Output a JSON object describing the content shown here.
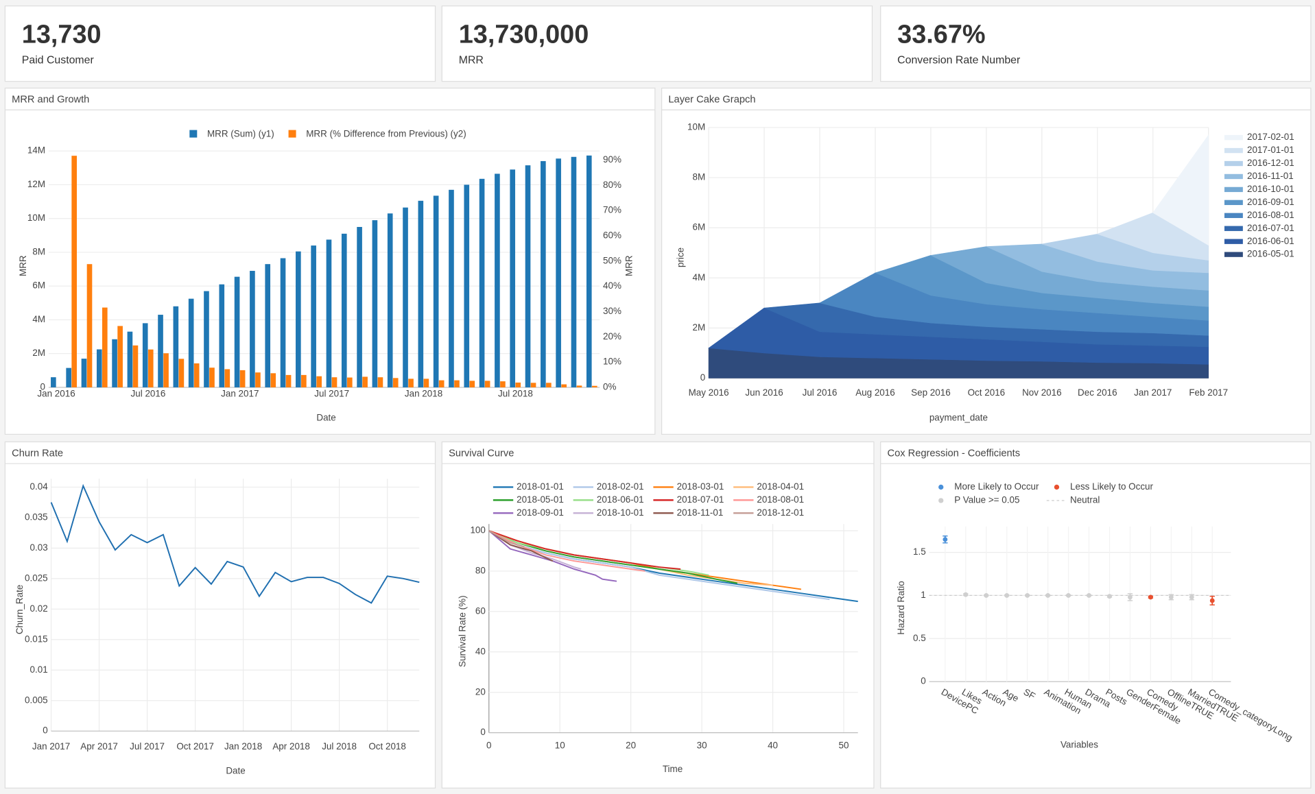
{
  "kpis": [
    {
      "value": "13,730",
      "label": "Paid Customer"
    },
    {
      "value": "13,730,000",
      "label": "MRR"
    },
    {
      "value": "33.67%",
      "label": "Conversion Rate Number"
    }
  ],
  "chart_data": [
    {
      "type": "bar",
      "title": "MRR and Growth",
      "xlabel": "Date",
      "ylabel": "MRR",
      "y2label": "MRR",
      "x": [
        "2016-01",
        "2016-02",
        "2016-03",
        "2016-04",
        "2016-05",
        "2016-06",
        "2016-07",
        "2016-08",
        "2016-09",
        "2016-10",
        "2016-11",
        "2016-12",
        "2017-01",
        "2017-02",
        "2017-03",
        "2017-04",
        "2017-05",
        "2017-06",
        "2017-07",
        "2017-08",
        "2017-09",
        "2017-10",
        "2017-11",
        "2017-12",
        "2018-01",
        "2018-02",
        "2018-03",
        "2018-04",
        "2018-05",
        "2018-06",
        "2018-07",
        "2018-08",
        "2018-09",
        "2018-10",
        "2018-11",
        "2018-12"
      ],
      "xticks": [
        {
          "value": "2016-01",
          "label": "Jan 2016"
        },
        {
          "value": "2016-07",
          "label": "Jul 2016"
        },
        {
          "value": "2017-01",
          "label": "Jan 2017"
        },
        {
          "value": "2017-07",
          "label": "Jul 2017"
        },
        {
          "value": "2018-01",
          "label": "Jan 2018"
        },
        {
          "value": "2018-07",
          "label": "Jul 2018"
        }
      ],
      "ylim": [
        0,
        14000000
      ],
      "yticks": [
        0,
        {
          "value": 2000000,
          "label": "2M"
        },
        {
          "value": 4000000,
          "label": "4M"
        },
        {
          "value": 6000000,
          "label": "6M"
        },
        {
          "value": 8000000,
          "label": "8M"
        },
        {
          "value": 10000000,
          "label": "10M"
        },
        {
          "value": 12000000,
          "label": "12M"
        },
        {
          "value": 14000000,
          "label": "14M"
        }
      ],
      "y2lim": [
        0,
        93.6
      ],
      "y2ticks": [
        {
          "value": 0,
          "label": "0%"
        },
        {
          "value": 10,
          "label": "10%"
        },
        {
          "value": 20,
          "label": "20%"
        },
        {
          "value": 30,
          "label": "30%"
        },
        {
          "value": 40,
          "label": "40%"
        },
        {
          "value": 50,
          "label": "50%"
        },
        {
          "value": 60,
          "label": "60%"
        },
        {
          "value": 70,
          "label": "70%"
        },
        {
          "value": 80,
          "label": "80%"
        },
        {
          "value": 90,
          "label": "90%"
        }
      ],
      "grid": true,
      "series": [
        {
          "name": "MRR (Sum) (y1)",
          "color": "#1f77b4",
          "axis": "y",
          "values": [
            600000,
            1150000,
            1700000,
            2250000,
            2850000,
            3300000,
            3800000,
            4300000,
            4800000,
            5250000,
            5700000,
            6100000,
            6550000,
            6900000,
            7300000,
            7650000,
            8050000,
            8400000,
            8750000,
            9100000,
            9500000,
            9900000,
            10300000,
            10650000,
            11050000,
            11350000,
            11700000,
            12000000,
            12350000,
            12650000,
            12900000,
            13150000,
            13400000,
            13550000,
            13650000,
            13730000
          ]
        },
        {
          "name": "MRR (% Difference from Previous) (y2)",
          "color": "#ff7f0e",
          "axis": "y2",
          "values": [
            null,
            91.7,
            48.8,
            31.6,
            24.3,
            16.6,
            15,
            13.5,
            11.3,
            9.5,
            7.8,
            7.2,
            6.8,
            5.9,
            5.6,
            4.9,
            4.9,
            4.4,
            4.0,
            3.9,
            4.2,
            4.0,
            3.7,
            3.4,
            3.4,
            2.8,
            2.8,
            2.6,
            2.6,
            2.4,
            1.9,
            1.8,
            1.8,
            1.2,
            0.7,
            0.6
          ]
        }
      ]
    },
    {
      "type": "area",
      "title": "Layer Cake Grapch",
      "xlabel": "payment_date",
      "ylabel": "price",
      "categories": [
        "May 2016",
        "Jun 2016",
        "Jul 2016",
        "Aug 2016",
        "Sep 2016",
        "Oct 2016",
        "Nov 2016",
        "Dec 2016",
        "Jan 2017",
        "Feb 2017"
      ],
      "ylim": [
        0,
        10000000
      ],
      "yticks": [
        0,
        {
          "value": 2000000,
          "label": "2M"
        },
        {
          "value": 4000000,
          "label": "4M"
        },
        {
          "value": 6000000,
          "label": "6M"
        },
        {
          "value": 8000000,
          "label": "8M"
        },
        {
          "value": 10000000,
          "label": "10M"
        }
      ],
      "grid": true,
      "legend": "right",
      "series": [
        {
          "name": "2016-05-01",
          "color": "#2f4b7c",
          "values": [
            1200000,
            1000000,
            850000,
            800000,
            750000,
            700000,
            670000,
            620000,
            600000,
            550000
          ]
        },
        {
          "name": "2016-06-01",
          "color": "#2e5ca6",
          "values": [
            null,
            1800000,
            1000000,
            950000,
            900000,
            850000,
            780000,
            730000,
            700000,
            700000
          ]
        },
        {
          "name": "2016-07-01",
          "color": "#3569ad",
          "values": [
            null,
            null,
            1150000,
            700000,
            550000,
            500000,
            500000,
            500000,
            500000,
            450000
          ]
        },
        {
          "name": "2016-08-01",
          "color": "#4a86c1",
          "values": [
            null,
            null,
            null,
            1750000,
            1100000,
            900000,
            800000,
            750000,
            650000,
            600000
          ]
        },
        {
          "name": "2016-09-01",
          "color": "#5b97c9",
          "values": [
            null,
            null,
            null,
            null,
            1600000,
            850000,
            650000,
            600000,
            550000,
            550000
          ]
        },
        {
          "name": "2016-10-01",
          "color": "#76aad4",
          "values": [
            null,
            null,
            null,
            null,
            null,
            1450000,
            850000,
            650000,
            650000,
            650000
          ]
        },
        {
          "name": "2016-11-01",
          "color": "#93bde0",
          "values": [
            null,
            null,
            null,
            null,
            null,
            null,
            1100000,
            800000,
            650000,
            700000
          ]
        },
        {
          "name": "2016-12-01",
          "color": "#b4d0ea",
          "values": [
            null,
            null,
            null,
            null,
            null,
            null,
            null,
            1100000,
            700000,
            500000
          ]
        },
        {
          "name": "2017-01-01",
          "color": "#d2e2f2",
          "values": [
            null,
            null,
            null,
            null,
            null,
            null,
            null,
            null,
            1600000,
            600000
          ]
        },
        {
          "name": "2017-02-01",
          "color": "#eef4fa",
          "values": [
            null,
            null,
            null,
            null,
            null,
            null,
            null,
            null,
            null,
            4400000
          ]
        }
      ]
    },
    {
      "type": "line",
      "title": "Churn Rate",
      "xlabel": "Date",
      "ylabel": "Churn_Rate",
      "x": [
        "2017-01",
        "2017-02",
        "2017-03",
        "2017-04",
        "2017-05",
        "2017-06",
        "2017-07",
        "2017-08",
        "2017-09",
        "2017-10",
        "2017-11",
        "2017-12",
        "2018-01",
        "2018-02",
        "2018-03",
        "2018-04",
        "2018-05",
        "2018-06",
        "2018-07",
        "2018-08",
        "2018-09",
        "2018-10",
        "2018-11",
        "2018-12"
      ],
      "xticks": [
        {
          "value": "2017-01",
          "label": "Jan 2017"
        },
        {
          "value": "2017-04",
          "label": "Apr 2017"
        },
        {
          "value": "2017-07",
          "label": "Jul 2017"
        },
        {
          "value": "2017-10",
          "label": "Oct 2017"
        },
        {
          "value": "2018-01",
          "label": "Jan 2018"
        },
        {
          "value": "2018-04",
          "label": "Apr 2018"
        },
        {
          "value": "2018-07",
          "label": "Jul 2018"
        },
        {
          "value": "2018-10",
          "label": "Oct 2018"
        }
      ],
      "ylim": [
        0,
        0.04
      ],
      "yticks": [
        0,
        0.005,
        0.01,
        0.015,
        0.02,
        0.025,
        0.03,
        0.035,
        0.04
      ],
      "grid": true,
      "color": "#1f6fb0",
      "values": [
        0.0375,
        0.0311,
        0.0402,
        0.0343,
        0.0297,
        0.0322,
        0.0309,
        0.0322,
        0.0238,
        0.0268,
        0.0241,
        0.0278,
        0.0269,
        0.0221,
        0.026,
        0.0245,
        0.0252,
        0.0252,
        0.0242,
        0.0224,
        0.021,
        0.0254,
        0.025,
        0.0244
      ]
    },
    {
      "type": "line",
      "title": "Survival Curve",
      "xlabel": "Time",
      "ylabel": "Survival Rate (%)",
      "xlim": [
        0,
        52
      ],
      "xticks": [
        0,
        10,
        20,
        30,
        40,
        50
      ],
      "ylim": [
        0,
        100
      ],
      "yticks": [
        0,
        20,
        40,
        60,
        80,
        100
      ],
      "grid": true,
      "legend": "top",
      "series": [
        {
          "name": "2018-01-01",
          "color": "#1f77b4",
          "x": [
            0,
            4,
            8,
            12,
            16,
            20,
            24,
            28,
            32,
            36,
            40,
            44,
            48,
            52
          ],
          "values": [
            100,
            93,
            89,
            86,
            84,
            82,
            79,
            77,
            75,
            73,
            71,
            69,
            67,
            65
          ]
        },
        {
          "name": "2018-02-01",
          "color": "#aec7e8",
          "x": [
            0,
            4,
            8,
            12,
            16,
            20,
            24,
            28,
            32,
            36,
            40,
            44,
            48
          ],
          "values": [
            100,
            93,
            89,
            86,
            84,
            82,
            78,
            76,
            74,
            72,
            70,
            68,
            66
          ]
        },
        {
          "name": "2018-03-01",
          "color": "#ff7f0e",
          "x": [
            0,
            4,
            8,
            12,
            16,
            20,
            24,
            28,
            32,
            36,
            40,
            44
          ],
          "values": [
            100,
            95,
            91,
            88,
            86,
            84,
            81,
            79,
            77,
            75,
            73,
            71
          ]
        },
        {
          "name": "2018-04-01",
          "color": "#ffbb78",
          "x": [
            0,
            4,
            8,
            12,
            16,
            20,
            24,
            28,
            32,
            36,
            40
          ],
          "values": [
            100,
            94,
            90,
            87,
            85,
            83,
            81,
            78,
            76,
            74,
            73
          ]
        },
        {
          "name": "2018-05-01",
          "color": "#2ca02c",
          "x": [
            0,
            4,
            8,
            12,
            16,
            20,
            24,
            28,
            32,
            35
          ],
          "values": [
            100,
            94,
            90,
            87,
            85,
            83,
            81,
            79,
            76,
            74
          ]
        },
        {
          "name": "2018-06-01",
          "color": "#98df8a",
          "x": [
            0,
            4,
            8,
            12,
            16,
            20,
            24,
            28,
            31
          ],
          "values": [
            100,
            94,
            91,
            88,
            86,
            84,
            82,
            80,
            78
          ]
        },
        {
          "name": "2018-07-01",
          "color": "#d62728",
          "x": [
            0,
            4,
            8,
            12,
            16,
            20,
            24,
            27
          ],
          "values": [
            100,
            95,
            91,
            88,
            86,
            84,
            82,
            81
          ]
        },
        {
          "name": "2018-08-01",
          "color": "#ff9896",
          "x": [
            0,
            4,
            8,
            12,
            16,
            20,
            22
          ],
          "values": [
            100,
            93,
            88,
            85,
            83,
            81,
            80
          ]
        },
        {
          "name": "2018-09-01",
          "color": "#9467bd",
          "x": [
            0,
            3,
            6,
            9,
            12,
            15,
            16,
            18
          ],
          "values": [
            100,
            91,
            88,
            85,
            81,
            78,
            76,
            75
          ]
        },
        {
          "name": "2018-10-01",
          "color": "#c5b0d5",
          "x": [
            0,
            3,
            6,
            9,
            12,
            13
          ],
          "values": [
            100,
            93,
            89,
            86,
            82,
            81
          ]
        },
        {
          "name": "2018-11-01",
          "color": "#8c564b",
          "x": [
            0,
            3,
            6,
            9
          ],
          "values": [
            100,
            93,
            90,
            85
          ]
        },
        {
          "name": "2018-12-01",
          "color": "#c49c94",
          "x": [
            0,
            3,
            5
          ],
          "values": [
            100,
            94,
            92
          ]
        }
      ]
    },
    {
      "type": "scatter",
      "title": "Cox Regression - Coefficients",
      "xlabel": "Variables",
      "ylabel": "Hazard Ratio",
      "categories": [
        "DevicePC",
        "Likes",
        "Action",
        "Age",
        "SF",
        "Animation",
        "Human",
        "Drama",
        "Posts",
        "GenderFemale",
        "Comedy",
        "OfflineTRUE",
        "MarriedTRUE",
        "Comedy_categoryLong"
      ],
      "ylim": [
        0,
        1.8
      ],
      "yticks": [
        0,
        0.5,
        1,
        1.5
      ],
      "grid": true,
      "reference_line": {
        "name": "Neutral",
        "value": 1,
        "color": "#cccccc"
      },
      "series": [
        {
          "name": "More Likely to Occur",
          "color": "#4a90d9",
          "values": [
            1.65,
            null,
            null,
            null,
            null,
            null,
            null,
            null,
            null,
            null,
            null,
            null,
            null,
            null
          ],
          "errors": [
            0.04,
            null,
            null,
            null,
            null,
            null,
            null,
            null,
            null,
            null,
            null,
            null,
            null,
            null
          ]
        },
        {
          "name": "Less Likely to Occur",
          "color": "#e8502f",
          "values": [
            null,
            null,
            null,
            null,
            null,
            null,
            null,
            null,
            null,
            null,
            0.98,
            null,
            null,
            0.94
          ],
          "errors": [
            null,
            null,
            null,
            null,
            null,
            null,
            null,
            null,
            null,
            null,
            0.01,
            null,
            null,
            0.05
          ]
        },
        {
          "name": "P Value >= 0.05",
          "color": "#cfcfcf",
          "values": [
            null,
            1.01,
            1.0,
            1.0,
            1.0,
            1.0,
            1.0,
            1.0,
            0.99,
            0.98,
            null,
            0.98,
            0.98,
            null
          ],
          "errors": [
            null,
            0.01,
            0.005,
            0.005,
            0.005,
            0.005,
            0.005,
            0.005,
            0.01,
            0.04,
            null,
            0.03,
            0.03,
            null
          ]
        }
      ]
    }
  ]
}
